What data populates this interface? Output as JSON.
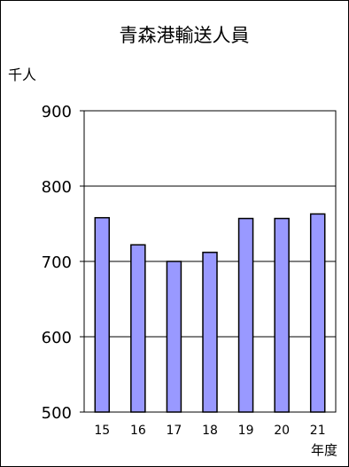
{
  "chart_data": {
    "type": "bar",
    "title": "青森港輸送人員",
    "ylabel": "千人",
    "xlabel": "年度",
    "categories": [
      "15",
      "16",
      "17",
      "18",
      "19",
      "20",
      "21"
    ],
    "values": [
      758,
      722,
      700,
      712,
      757,
      757,
      763
    ],
    "ylim": [
      500,
      900
    ],
    "yticks": [
      900,
      800,
      700,
      600,
      500
    ],
    "grid": true,
    "legend": "none",
    "bar_color": "#9999ff",
    "bar_edge_color": "#000000",
    "grid_color": "#000000"
  }
}
